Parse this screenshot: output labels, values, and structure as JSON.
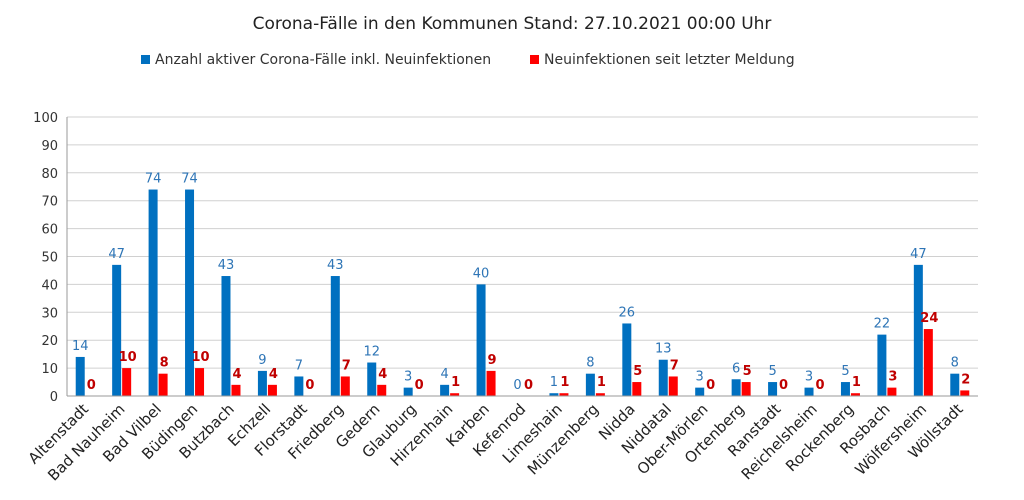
{
  "chart_data": {
    "type": "bar",
    "title": "Corona-Fälle in den Kommunen Stand: 27.10.2021 00:00 Uhr",
    "categories": [
      "Altenstadt",
      "Bad Nauheim",
      "Bad Vilbel",
      "Büdingen",
      "Butzbach",
      "Echzell",
      "Florstadt",
      "Friedberg",
      "Gedern",
      "Glauburg",
      "Hirzenhain",
      "Karben",
      "Kefenrod",
      "Limeshain",
      "Münzenberg",
      "Nidda",
      "Niddatal",
      "Ober-Mörlen",
      "Ortenberg",
      "Ranstadt",
      "Reichelsheim",
      "Rockenberg",
      "Rosbach",
      "Wölfersheim",
      "Wöllstadt"
    ],
    "series": [
      {
        "name": "Anzahl aktiver Corona-Fälle inkl. Neuinfektionen",
        "color": "#0070c0",
        "label_color": "#2e75b6",
        "values": [
          14,
          47,
          74,
          74,
          43,
          9,
          7,
          43,
          12,
          3,
          4,
          40,
          0,
          1,
          8,
          26,
          13,
          3,
          6,
          5,
          3,
          5,
          22,
          47,
          8
        ]
      },
      {
        "name": "Neuinfektionen seit letzter Meldung",
        "color": "#ff0000",
        "label_color": "#c00000",
        "values": [
          0,
          10,
          8,
          10,
          4,
          4,
          0,
          7,
          4,
          0,
          1,
          9,
          0,
          1,
          1,
          5,
          7,
          0,
          5,
          0,
          0,
          1,
          3,
          24,
          2
        ]
      }
    ],
    "ylim": [
      0,
      100
    ],
    "yticks": [
      0,
      10,
      20,
      30,
      40,
      50,
      60,
      70,
      80,
      90,
      100
    ],
    "grid": true,
    "legend": "top",
    "xlabel": "",
    "ylabel": ""
  }
}
